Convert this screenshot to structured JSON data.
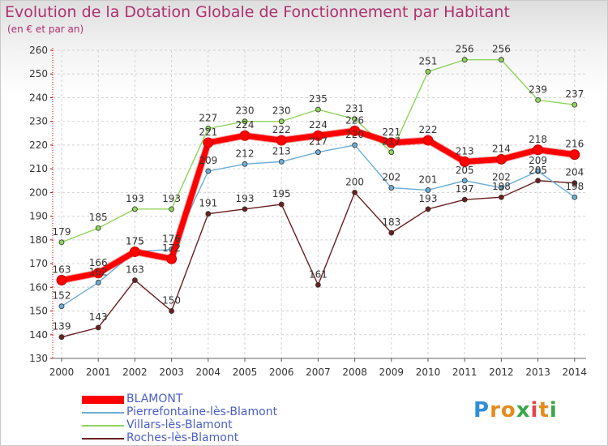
{
  "title": "Evolution de la Dotation Globale de Fonctionnement par Habitant",
  "subtitle": "(en € et par an)",
  "logo": {
    "letters": [
      "P",
      "r",
      "o",
      "x",
      "i",
      "t",
      "i"
    ],
    "colors": [
      "#2e8fd4",
      "#e58b1c",
      "#e58b1c",
      "#3aa64a",
      "#e04646",
      "#e58b1c",
      "#3aa64a"
    ]
  },
  "chart_data": {
    "type": "line",
    "title": "Evolution de la Dotation Globale de Fonctionnement par Habitant",
    "subtitle": "(en € et par an)",
    "xlabel": "",
    "ylabel": "",
    "x": [
      "2000",
      "2001",
      "2002",
      "2003",
      "2004",
      "2005",
      "2006",
      "2007",
      "2008",
      "2009",
      "2010",
      "2011",
      "2012",
      "2013",
      "2014"
    ],
    "y_ticks": [
      130,
      140,
      150,
      160,
      170,
      180,
      190,
      200,
      210,
      220,
      230,
      240,
      250,
      260
    ],
    "ylim": [
      130,
      260
    ],
    "grid": true,
    "legend_position": "bottom-left",
    "series": [
      {
        "name": "BLAMONT",
        "color": "#ff0000",
        "bold": true,
        "values": [
          163,
          166,
          175,
          172,
          221,
          224,
          222,
          224,
          226,
          221,
          222,
          213,
          214,
          218,
          216
        ]
      },
      {
        "name": "Pierrefontaine-lès-Blamont",
        "color": "#6baed6",
        "values": [
          152,
          162,
          175,
          176,
          209,
          212,
          213,
          217,
          220,
          202,
          201,
          205,
          202,
          209,
          198
        ]
      },
      {
        "name": "Villars-lès-Blamont",
        "color": "#8fd45a",
        "values": [
          179,
          185,
          193,
          193,
          227,
          230,
          230,
          235,
          231,
          217,
          251,
          256,
          256,
          239,
          237
        ]
      },
      {
        "name": "Roches-lès-Blamont",
        "color": "#6b1f1f",
        "values": [
          139,
          143,
          163,
          150,
          191,
          193,
          195,
          161,
          200,
          183,
          193,
          197,
          198,
          205,
          204
        ]
      }
    ]
  }
}
